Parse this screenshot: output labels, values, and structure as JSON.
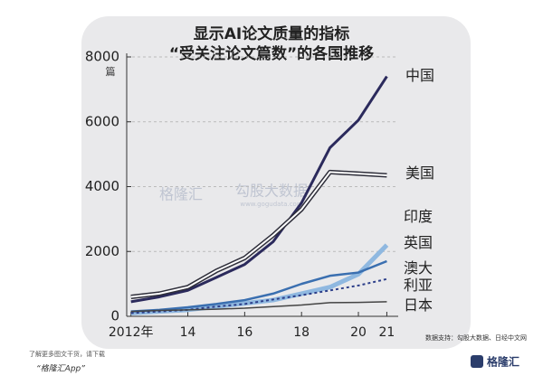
{
  "chart_data": {
    "type": "line",
    "title": "显示AI论文质量的指标",
    "subtitle": "“受关注论文篇数”的各国推移",
    "y_unit": "篇",
    "x": [
      2012,
      2013,
      2014,
      2015,
      2016,
      2017,
      2018,
      2019,
      2020,
      2021
    ],
    "xlim": [
      2011.85,
      2021.4
    ],
    "xticks": [
      {
        "value": 2012,
        "label": "2012年"
      },
      {
        "value": 2014,
        "label": "14"
      },
      {
        "value": 2016,
        "label": "16"
      },
      {
        "value": 2018,
        "label": "18"
      },
      {
        "value": 2020,
        "label": "20"
      },
      {
        "value": 2021,
        "label": "21"
      }
    ],
    "ylim": [
      0,
      8000
    ],
    "yticks": [
      0,
      2000,
      4000,
      6000,
      8000
    ],
    "grid": true,
    "series": [
      {
        "name": "中国",
        "color": "#2b2a5c",
        "values": [
          450,
          600,
          800,
          1200,
          1600,
          2300,
          3500,
          5200,
          6050,
          7400
        ]
      },
      {
        "name": "美国",
        "color": "#2e2e3a",
        "values": [
          600,
          700,
          900,
          1400,
          1800,
          2500,
          3300,
          4450,
          4400,
          4350
        ]
      },
      {
        "name": "印度",
        "color": "#8fb8e0",
        "values": [
          100,
          150,
          200,
          300,
          400,
          500,
          700,
          900,
          1300,
          2200
        ]
      },
      {
        "name": "英国",
        "color": "#3a6fb0",
        "values": [
          150,
          200,
          280,
          380,
          500,
          700,
          1000,
          1250,
          1350,
          1700
        ]
      },
      {
        "name": "澳大利亚",
        "color": "#2d3f8a",
        "values": [
          100,
          150,
          200,
          300,
          380,
          520,
          650,
          800,
          950,
          1150
        ]
      },
      {
        "name": "日本",
        "color": "#444444",
        "values": [
          150,
          180,
          200,
          220,
          250,
          300,
          350,
          420,
          430,
          450
        ]
      }
    ],
    "source": "数据支持：勾股大数据、日经中文网"
  },
  "watermark": {
    "brand": "格隆汇",
    "partner": "勾股大数据",
    "url": "www.gogudata.com"
  },
  "footer": {
    "line1": "了解更多图文干货，请下载",
    "line2": "“格隆汇App”",
    "logo": "格隆汇"
  }
}
